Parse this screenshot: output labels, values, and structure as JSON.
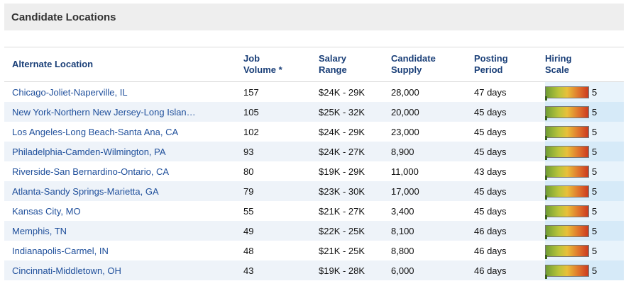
{
  "panel": {
    "title": "Candidate Locations"
  },
  "columns": {
    "location": "Alternate Location",
    "job_volume_1": "Job",
    "job_volume_2": "Volume *",
    "salary_1": "Salary",
    "salary_2": "Range",
    "supply_1": "Candidate",
    "supply_2": "Supply",
    "posting_1": "Posting",
    "posting_2": "Period",
    "hiring_1": "Hiring",
    "hiring_2": "Scale"
  },
  "gauge_colors": [
    "#6f9d34",
    "#e8c03a",
    "#cc3a20"
  ],
  "rows": [
    {
      "location": "Chicago-Joliet-Naperville, IL",
      "job_volume": "157",
      "salary_range": "$24K - 29K",
      "candidate_supply": "28,000",
      "posting_period": "47 days",
      "hiring_scale": "5"
    },
    {
      "location": "New York-Northern New Jersey-Long Islan…",
      "job_volume": "105",
      "salary_range": "$25K - 32K",
      "candidate_supply": "20,000",
      "posting_period": "45 days",
      "hiring_scale": "5"
    },
    {
      "location": "Los Angeles-Long Beach-Santa Ana, CA",
      "job_volume": "102",
      "salary_range": "$24K - 29K",
      "candidate_supply": "23,000",
      "posting_period": "45 days",
      "hiring_scale": "5"
    },
    {
      "location": "Philadelphia-Camden-Wilmington, PA",
      "job_volume": "93",
      "salary_range": "$24K - 27K",
      "candidate_supply": "8,900",
      "posting_period": "45 days",
      "hiring_scale": "5"
    },
    {
      "location": "Riverside-San Bernardino-Ontario, CA",
      "job_volume": "80",
      "salary_range": "$19K - 29K",
      "candidate_supply": "11,000",
      "posting_period": "43 days",
      "hiring_scale": "5"
    },
    {
      "location": "Atlanta-Sandy Springs-Marietta, GA",
      "job_volume": "79",
      "salary_range": "$23K - 30K",
      "candidate_supply": "17,000",
      "posting_period": "45 days",
      "hiring_scale": "5"
    },
    {
      "location": "Kansas City, MO",
      "job_volume": "55",
      "salary_range": "$21K - 27K",
      "candidate_supply": "3,400",
      "posting_period": "45 days",
      "hiring_scale": "5"
    },
    {
      "location": "Memphis, TN",
      "job_volume": "49",
      "salary_range": "$22K - 25K",
      "candidate_supply": "8,100",
      "posting_period": "46 days",
      "hiring_scale": "5"
    },
    {
      "location": "Indianapolis-Carmel, IN",
      "job_volume": "48",
      "salary_range": "$21K - 25K",
      "candidate_supply": "8,800",
      "posting_period": "46 days",
      "hiring_scale": "5"
    },
    {
      "location": "Cincinnati-Middletown, OH",
      "job_volume": "43",
      "salary_range": "$19K - 28K",
      "candidate_supply": "6,000",
      "posting_period": "46 days",
      "hiring_scale": "5"
    }
  ]
}
